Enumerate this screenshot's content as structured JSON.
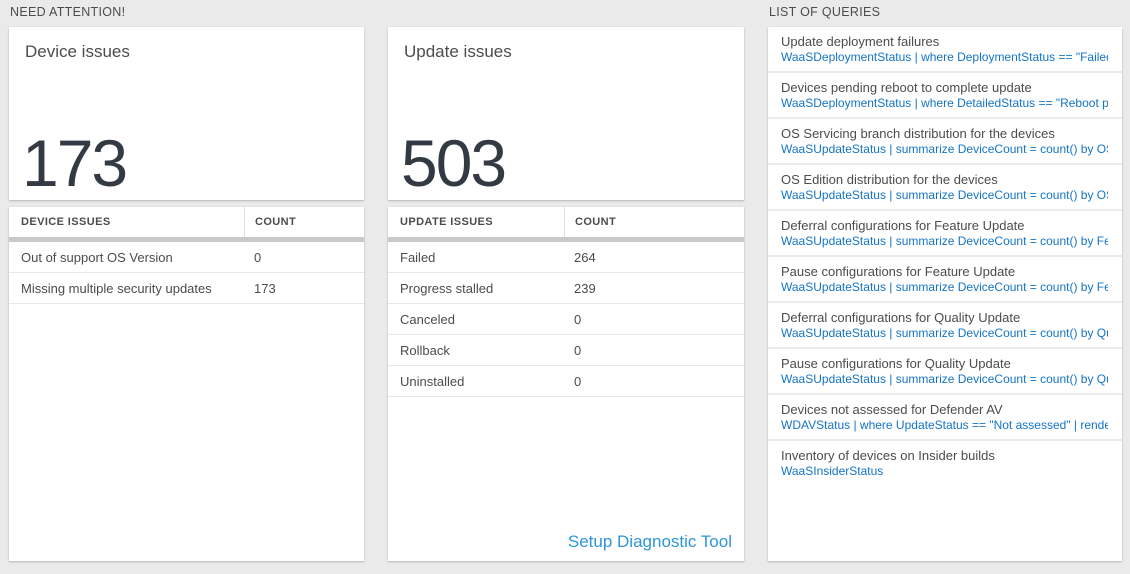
{
  "colors": {
    "page_background": "#eaeaea",
    "big_number": "#333a44",
    "query_link_blue": "#1474c4",
    "action_link_blue": "#2e95d8",
    "scrollbar_gray": "#c9c9c9"
  },
  "need_attention": {
    "section_title": "NEED ATTENTION!",
    "device_card": {
      "title": "Device issues",
      "count": "173"
    },
    "device_table": {
      "headers": [
        "DEVICE ISSUES",
        "COUNT"
      ],
      "rows": [
        {
          "label": "Out of support OS Version",
          "count": "0"
        },
        {
          "label": "Missing multiple security updates",
          "count": "173"
        }
      ]
    },
    "update_card": {
      "title": "Update issues",
      "count": "503"
    },
    "update_table": {
      "headers": [
        "UPDATE ISSUES",
        "COUNT"
      ],
      "rows": [
        {
          "label": "Failed",
          "count": "264"
        },
        {
          "label": "Progress stalled",
          "count": "239"
        },
        {
          "label": "Canceled",
          "count": "0"
        },
        {
          "label": "Rollback",
          "count": "0"
        },
        {
          "label": "Uninstalled",
          "count": "0"
        }
      ]
    },
    "diagnostic_link_label": "Setup Diagnostic Tool"
  },
  "queries": {
    "section_title": "LIST OF QUERIES",
    "items": [
      {
        "title": "Update deployment failures",
        "query": "WaaSDeploymentStatus | where DeploymentStatus == \"Failed\" |..."
      },
      {
        "title": "Devices pending reboot to complete update",
        "query": "WaaSDeploymentStatus | where DetailedStatus == \"Reboot pend..."
      },
      {
        "title": "OS Servicing branch distribution for the devices",
        "query": "WaaSUpdateStatus | summarize DeviceCount = count() by OSSer..."
      },
      {
        "title": "OS Edition distribution for the devices",
        "query": "WaaSUpdateStatus | summarize DeviceCount = count() by OSEdit..."
      },
      {
        "title": "Deferral configurations for Feature Update",
        "query": "WaaSUpdateStatus | summarize DeviceCount = count() by Featur..."
      },
      {
        "title": "Pause configurations for Feature Update",
        "query": "WaaSUpdateStatus | summarize DeviceCount = count() by Featur..."
      },
      {
        "title": "Deferral configurations for Quality Update",
        "query": "WaaSUpdateStatus | summarize DeviceCount = count() by Qualit..."
      },
      {
        "title": "Pause configurations for Quality Update",
        "query": "WaaSUpdateStatus | summarize DeviceCount = count() by Qualit..."
      },
      {
        "title": "Devices not assessed for Defender AV",
        "query": "WDAVStatus | where UpdateStatus == \"Not assessed\" | render ta..."
      },
      {
        "title": "Inventory of devices on Insider builds",
        "query": "WaaSInsiderStatus"
      }
    ]
  }
}
